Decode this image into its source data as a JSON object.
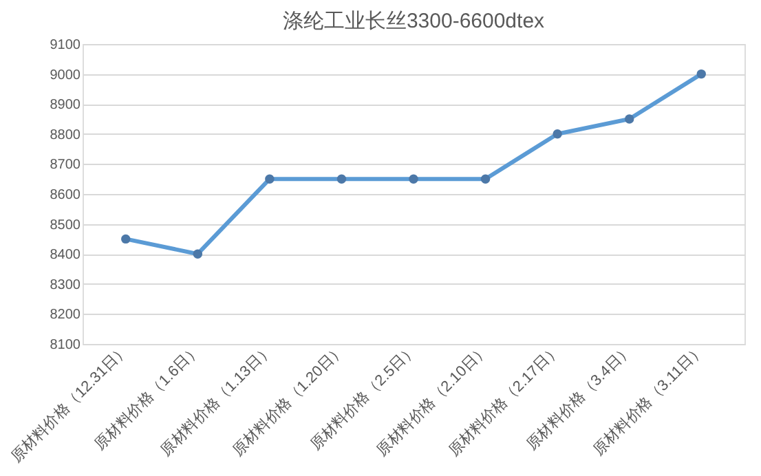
{
  "chart_data": {
    "type": "line",
    "title": "涤纶工业长丝3300-6600dtex",
    "categories": [
      "原材料价格（12.31日）",
      "原材料价格（1.6日）",
      "原材料价格（1.13日）",
      "原材料价格（1.20日）",
      "原材料价格（2.5日）",
      "原材料价格（2.10日）",
      "原材料价格（2.17日）",
      "原材料价格（3.4日）",
      "原材料价格（3.11日）"
    ],
    "series": [
      {
        "color": "#5b9bd5",
        "values": [
          8450,
          8400,
          8650,
          8650,
          8650,
          8650,
          8800,
          8850,
          9000
        ]
      }
    ],
    "ylim": [
      8100,
      9100
    ],
    "yticks": [
      8100,
      8200,
      8300,
      8400,
      8500,
      8600,
      8700,
      8800,
      8900,
      9000,
      9100
    ],
    "grid": "y",
    "marker": "circle"
  }
}
